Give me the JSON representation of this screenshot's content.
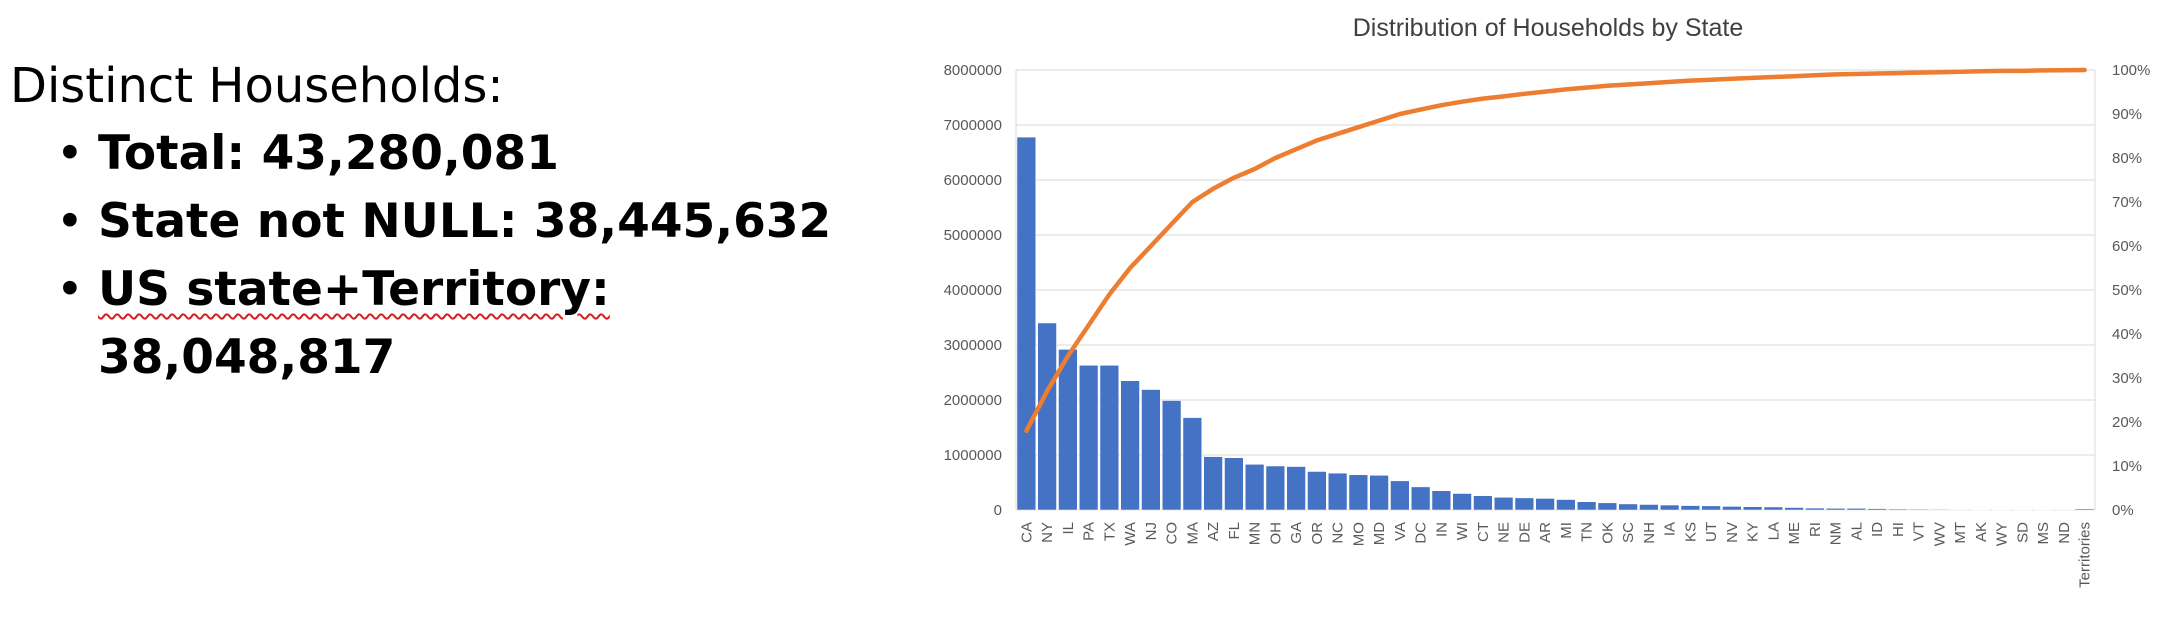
{
  "summary": {
    "heading": "Distinct Households:",
    "items": [
      {
        "label": "Total:",
        "value": "43,280,081"
      },
      {
        "label": "State not NULL:",
        "value": "38,445,632"
      },
      {
        "label": "US state+Territory:",
        "value": "38,048,817"
      }
    ]
  },
  "chart_data": {
    "type": "bar",
    "title": "Distribution of Households by State",
    "xlabel": "",
    "ylabel": "",
    "ylim": [
      0,
      8000000
    ],
    "y2lim": [
      0,
      1
    ],
    "y_ticks": [
      "0",
      "1000000",
      "2000000",
      "3000000",
      "4000000",
      "5000000",
      "6000000",
      "7000000",
      "8000000"
    ],
    "y2_ticks": [
      "0%",
      "10%",
      "20%",
      "30%",
      "40%",
      "50%",
      "60%",
      "70%",
      "80%",
      "90%",
      "100%"
    ],
    "grid": true,
    "legend": "none",
    "bar_color": "#4472c4",
    "line_color": "#ed7d31",
    "categories": [
      "CA",
      "NY",
      "IL",
      "PA",
      "TX",
      "WA",
      "NJ",
      "CO",
      "MA",
      "AZ",
      "FL",
      "MN",
      "OH",
      "GA",
      "OR",
      "NC",
      "MO",
      "MD",
      "VA",
      "DC",
      "IN",
      "WI",
      "CT",
      "NE",
      "DE",
      "AR",
      "MI",
      "TN",
      "OK",
      "SC",
      "NH",
      "IA",
      "KS",
      "UT",
      "NV",
      "KY",
      "LA",
      "ME",
      "RI",
      "NM",
      "AL",
      "ID",
      "HI",
      "VT",
      "WV",
      "MT",
      "AK",
      "WY",
      "SD",
      "MS",
      "ND",
      "US Territories"
    ],
    "x_tick_labels": [
      "CA",
      "NY",
      "IL",
      "PA",
      "TX",
      "WA",
      "NJ",
      "CO",
      "MA",
      "AZ",
      "FL",
      "MN",
      "OH",
      "GA",
      "OR",
      "NC",
      "MO",
      "MD",
      "VA",
      "DC",
      "IN",
      "WI",
      "CT",
      "NE",
      "DE",
      "AR",
      "MI",
      "TN",
      "OK",
      "SC",
      "NH",
      "IA",
      "KS",
      "UT",
      "NV",
      "KY",
      "LA",
      "ME",
      "RI",
      "NM",
      "AL",
      "ID",
      "HI",
      "VT",
      "WV",
      "MT",
      "AK",
      "WY",
      "SD",
      "MS",
      "ND",
      "Territories"
    ],
    "series": [
      {
        "values": [
          6780000,
          3400000,
          2920000,
          2630000,
          2630000,
          2350000,
          2190000,
          1990000,
          1680000,
          970000,
          950000,
          830000,
          800000,
          790000,
          700000,
          670000,
          640000,
          630000,
          530000,
          420000,
          350000,
          300000,
          260000,
          230000,
          220000,
          210000,
          190000,
          150000,
          130000,
          110000,
          100000,
          90000,
          80000,
          75000,
          65000,
          60000,
          55000,
          45000,
          35000,
          30000,
          30000,
          25000,
          18000,
          15000,
          12000,
          10000,
          8000,
          6000,
          5000,
          4000,
          3000,
          20000
        ]
      },
      {
        "values": [
          0.18,
          0.27,
          0.35,
          0.42,
          0.49,
          0.55,
          0.6,
          0.65,
          0.7,
          0.73,
          0.755,
          0.775,
          0.8,
          0.82,
          0.84,
          0.855,
          0.87,
          0.885,
          0.9,
          0.91,
          0.92,
          0.928,
          0.935,
          0.94,
          0.946,
          0.951,
          0.956,
          0.96,
          0.964,
          0.967,
          0.97,
          0.973,
          0.976,
          0.978,
          0.98,
          0.982,
          0.984,
          0.986,
          0.988,
          0.99,
          0.991,
          0.992,
          0.993,
          0.994,
          0.995,
          0.996,
          0.997,
          0.998,
          0.998,
          0.999,
          0.9995,
          1.0
        ]
      }
    ]
  }
}
